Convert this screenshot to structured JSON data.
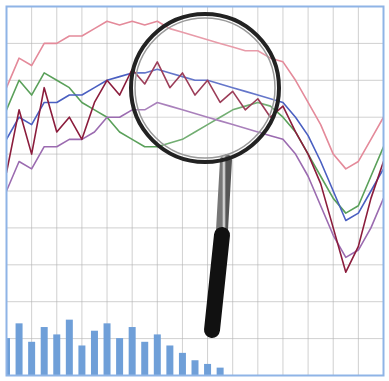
{
  "chart_data": {
    "type": "line",
    "x": [
      0,
      1,
      2,
      3,
      4,
      5,
      6,
      7,
      8,
      9,
      10,
      11,
      12,
      13,
      14,
      15,
      16,
      17,
      18,
      19,
      20,
      21,
      22,
      23,
      24,
      25,
      26,
      27,
      28,
      29,
      30
    ],
    "xlim": [
      0,
      30
    ],
    "ylim": [
      0,
      100
    ],
    "xticks": [
      0,
      2,
      4,
      6,
      8,
      10,
      12,
      14,
      16,
      18,
      20,
      22,
      24,
      26,
      28,
      30
    ],
    "yticks": [
      0,
      10,
      20,
      30,
      40,
      50,
      60,
      70,
      80,
      90,
      100
    ],
    "grid": true,
    "tick_labels": false,
    "series": [
      {
        "color": "#6f9fd8",
        "type": "bar",
        "values": [
          10,
          14,
          9,
          13,
          11,
          15,
          8,
          12,
          14,
          10,
          13,
          9,
          11,
          8,
          6,
          4,
          3,
          2,
          0,
          0,
          0,
          0,
          0,
          0,
          0,
          0,
          0,
          0,
          0,
          0,
          0
        ]
      },
      {
        "color": "#e48a9a",
        "type": "line",
        "values": [
          78,
          86,
          84,
          90,
          90,
          92,
          92,
          94,
          96,
          95,
          96,
          95,
          96,
          94,
          93,
          92,
          91,
          90,
          89,
          88,
          88,
          86,
          85,
          80,
          74,
          68,
          60,
          56,
          58,
          64,
          70
        ]
      },
      {
        "color": "#5aa05a",
        "type": "line",
        "values": [
          72,
          80,
          76,
          82,
          80,
          78,
          74,
          72,
          70,
          66,
          64,
          62,
          62,
          63,
          64,
          66,
          68,
          70,
          72,
          73,
          74,
          73,
          70,
          66,
          60,
          54,
          48,
          44,
          46,
          54,
          62
        ]
      },
      {
        "color": "#4a5fc1",
        "type": "line",
        "values": [
          64,
          70,
          68,
          74,
          74,
          76,
          76,
          78,
          80,
          81,
          82,
          82,
          83,
          82,
          81,
          80,
          80,
          79,
          78,
          77,
          76,
          75,
          74,
          70,
          65,
          58,
          50,
          42,
          44,
          50,
          56
        ]
      },
      {
        "color": "#9b6bb0",
        "type": "line",
        "values": [
          50,
          58,
          56,
          62,
          62,
          64,
          64,
          66,
          70,
          70,
          72,
          72,
          74,
          73,
          72,
          71,
          70,
          69,
          68,
          67,
          66,
          65,
          64,
          60,
          54,
          46,
          38,
          32,
          34,
          40,
          48
        ]
      },
      {
        "color": "#8b1c3c",
        "type": "line",
        "values": [
          55,
          72,
          60,
          78,
          66,
          70,
          64,
          74,
          80,
          76,
          83,
          79,
          85,
          78,
          82,
          76,
          80,
          74,
          77,
          72,
          75,
          70,
          73,
          66,
          60,
          52,
          40,
          28,
          35,
          48,
          58
        ]
      }
    ]
  }
}
